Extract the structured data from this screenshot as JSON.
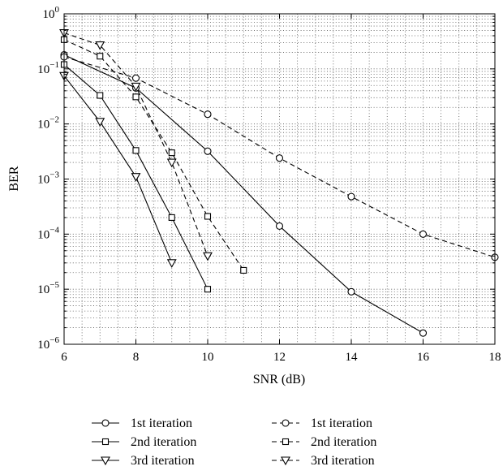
{
  "chart_data": {
    "type": "line",
    "title": "",
    "xlabel": "SNR (dB)",
    "ylabel": "BER",
    "xlim": [
      6,
      18
    ],
    "ylim": [
      1e-06,
      1
    ],
    "yscale": "log",
    "grid": true,
    "legend_position": "bottom",
    "x_ticks": [
      6,
      8,
      10,
      12,
      14,
      16,
      18
    ],
    "y_ticks": [
      {
        "value": 1e-06,
        "base": "10",
        "exp": "−6"
      },
      {
        "value": 1e-05,
        "base": "10",
        "exp": "−5"
      },
      {
        "value": 0.0001,
        "base": "10",
        "exp": "−4"
      },
      {
        "value": 0.001,
        "base": "10",
        "exp": "−3"
      },
      {
        "value": 0.01,
        "base": "10",
        "exp": "−2"
      },
      {
        "value": 0.1,
        "base": "10",
        "exp": "−1"
      },
      {
        "value": 1,
        "base": "10",
        "exp": "0"
      }
    ],
    "series": [
      {
        "name": "1st iteration",
        "line": "solid",
        "marker": "circle",
        "x": [
          6,
          8,
          10,
          12,
          14,
          16
        ],
        "y": [
          0.18,
          0.045,
          0.0032,
          0.00014,
          9e-06,
          1.6e-06
        ]
      },
      {
        "name": "2nd iteration",
        "line": "solid",
        "marker": "square",
        "x": [
          6,
          7,
          8,
          9,
          10
        ],
        "y": [
          0.12,
          0.033,
          0.0033,
          0.0002,
          1e-05
        ]
      },
      {
        "name": "3rd iteration",
        "line": "solid",
        "marker": "triangle-down",
        "x": [
          6,
          7,
          8,
          9
        ],
        "y": [
          0.075,
          0.011,
          0.0011,
          3e-05
        ]
      },
      {
        "name": "1st iteration",
        "line": "dashed",
        "marker": "circle",
        "x": [
          6,
          8,
          10,
          12,
          14,
          16,
          18
        ],
        "y": [
          0.165,
          0.068,
          0.015,
          0.0024,
          0.00048,
          0.0001,
          3.8e-05
        ]
      },
      {
        "name": "2nd iteration",
        "line": "dashed",
        "marker": "square",
        "x": [
          6,
          7,
          8,
          9,
          10,
          11
        ],
        "y": [
          0.34,
          0.17,
          0.031,
          0.003,
          0.00021,
          2.2e-05
        ]
      },
      {
        "name": "3rd iteration",
        "line": "dashed",
        "marker": "triangle-down",
        "x": [
          6,
          7,
          8,
          9,
          10
        ],
        "y": [
          0.45,
          0.27,
          0.048,
          0.002,
          4e-05
        ]
      }
    ]
  }
}
